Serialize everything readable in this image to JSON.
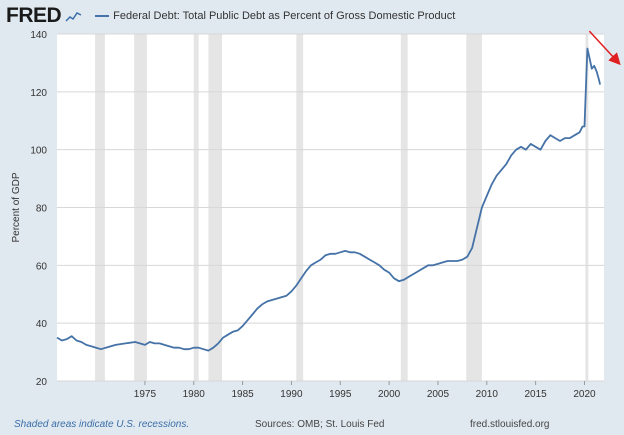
{
  "header": {
    "logo": "FRED",
    "series_title": "Federal Debt: Total Public Debt as Percent of Gross Domestic Product"
  },
  "footer": {
    "recessions_note": "Shaded areas indicate U.S. recessions.",
    "sources": "Sources: OMB; St. Louis Fed",
    "site": "fred.stlouisfed.org"
  },
  "colors": {
    "background": "#e1e9f0",
    "plot": "#ffffff",
    "line": "#4572a7",
    "recession": "#e5e5e5",
    "arrow": "#e02020"
  },
  "chart_data": {
    "type": "line",
    "title": "Federal Debt: Total Public Debt as Percent of Gross Domestic Product",
    "xlabel": "",
    "ylabel": "Percent of GDP",
    "xlim": [
      1966,
      2022
    ],
    "ylim": [
      20,
      140
    ],
    "xticks": [
      1975,
      1980,
      1985,
      1990,
      1995,
      2000,
      2005,
      2010,
      2015,
      2020
    ],
    "yticks": [
      20,
      40,
      60,
      80,
      100,
      120,
      140
    ],
    "grid": "horizontal",
    "recessions": [
      [
        1969.9,
        1970.9
      ],
      [
        1973.9,
        1975.2
      ],
      [
        1980.0,
        1980.5
      ],
      [
        1981.5,
        1982.9
      ],
      [
        1990.5,
        1991.2
      ],
      [
        2001.2,
        2001.9
      ],
      [
        2007.9,
        2009.5
      ],
      [
        2020.1,
        2020.4
      ]
    ],
    "series": [
      {
        "points": [
          [
            1966.0,
            35
          ],
          [
            1966.5,
            34
          ],
          [
            1967.0,
            34.5
          ],
          [
            1967.5,
            35.5
          ],
          [
            1968.0,
            34
          ],
          [
            1968.5,
            33.5
          ],
          [
            1969.0,
            32.5
          ],
          [
            1969.5,
            32
          ],
          [
            1970.0,
            31.5
          ],
          [
            1970.5,
            31
          ],
          [
            1971.0,
            31.5
          ],
          [
            1972.0,
            32.5
          ],
          [
            1973.0,
            33
          ],
          [
            1974.0,
            33.5
          ],
          [
            1974.5,
            33
          ],
          [
            1975.0,
            32.5
          ],
          [
            1975.5,
            33.5
          ],
          [
            1976.0,
            33
          ],
          [
            1976.5,
            33
          ],
          [
            1977.0,
            32.5
          ],
          [
            1978.0,
            31.5
          ],
          [
            1978.5,
            31.5
          ],
          [
            1979.0,
            31
          ],
          [
            1979.5,
            31
          ],
          [
            1980.0,
            31.5
          ],
          [
            1980.5,
            31.5
          ],
          [
            1981.0,
            31
          ],
          [
            1981.5,
            30.5
          ],
          [
            1982.0,
            31.5
          ],
          [
            1982.5,
            33
          ],
          [
            1983.0,
            35
          ],
          [
            1983.5,
            36
          ],
          [
            1984.0,
            37
          ],
          [
            1984.5,
            37.5
          ],
          [
            1985.0,
            39
          ],
          [
            1985.5,
            41
          ],
          [
            1986.0,
            43
          ],
          [
            1986.5,
            45
          ],
          [
            1987.0,
            46.5
          ],
          [
            1987.5,
            47.5
          ],
          [
            1988.0,
            48
          ],
          [
            1988.5,
            48.5
          ],
          [
            1989.0,
            49
          ],
          [
            1989.5,
            49.5
          ],
          [
            1990.0,
            51
          ],
          [
            1990.5,
            53
          ],
          [
            1991.0,
            55.5
          ],
          [
            1991.5,
            58
          ],
          [
            1992.0,
            60
          ],
          [
            1992.5,
            61
          ],
          [
            1993.0,
            62
          ],
          [
            1993.5,
            63.5
          ],
          [
            1994.0,
            64
          ],
          [
            1994.5,
            64
          ],
          [
            1995.0,
            64.5
          ],
          [
            1995.5,
            65
          ],
          [
            1996.0,
            64.5
          ],
          [
            1996.5,
            64.5
          ],
          [
            1997.0,
            64
          ],
          [
            1997.5,
            63
          ],
          [
            1998.0,
            62
          ],
          [
            1998.5,
            61
          ],
          [
            1999.0,
            60
          ],
          [
            1999.5,
            58.5
          ],
          [
            2000.0,
            57.5
          ],
          [
            2000.5,
            55.5
          ],
          [
            2001.0,
            54.5
          ],
          [
            2001.5,
            55
          ],
          [
            2002.0,
            56
          ],
          [
            2002.5,
            57
          ],
          [
            2003.0,
            58
          ],
          [
            2003.5,
            59
          ],
          [
            2004.0,
            60
          ],
          [
            2004.5,
            60
          ],
          [
            2005.0,
            60.5
          ],
          [
            2005.5,
            61
          ],
          [
            2006.0,
            61.5
          ],
          [
            2006.5,
            61.5
          ],
          [
            2007.0,
            61.5
          ],
          [
            2007.5,
            62
          ],
          [
            2008.0,
            63
          ],
          [
            2008.5,
            66
          ],
          [
            2009.0,
            73
          ],
          [
            2009.5,
            80
          ],
          [
            2010.0,
            84
          ],
          [
            2010.5,
            88
          ],
          [
            2011.0,
            91
          ],
          [
            2011.5,
            93
          ],
          [
            2012.0,
            95
          ],
          [
            2012.5,
            98
          ],
          [
            2013.0,
            100
          ],
          [
            2013.5,
            101
          ],
          [
            2014.0,
            100
          ],
          [
            2014.5,
            102
          ],
          [
            2015.0,
            101
          ],
          [
            2015.5,
            100
          ],
          [
            2016.0,
            103
          ],
          [
            2016.5,
            105
          ],
          [
            2017.0,
            104
          ],
          [
            2017.5,
            103
          ],
          [
            2018.0,
            104
          ],
          [
            2018.5,
            104
          ],
          [
            2019.0,
            105
          ],
          [
            2019.5,
            106
          ],
          [
            2019.8,
            108
          ],
          [
            2020.0,
            108
          ],
          [
            2020.2,
            126
          ],
          [
            2020.3,
            135
          ],
          [
            2020.5,
            132
          ],
          [
            2020.75,
            128
          ],
          [
            2021.0,
            129
          ],
          [
            2021.25,
            127
          ],
          [
            2021.5,
            124
          ],
          [
            2021.6,
            122.5
          ]
        ]
      }
    ],
    "annotations": [
      {
        "type": "arrow",
        "from": [
          2020.5,
          141
        ],
        "to": [
          2023.5,
          130
        ]
      }
    ]
  }
}
